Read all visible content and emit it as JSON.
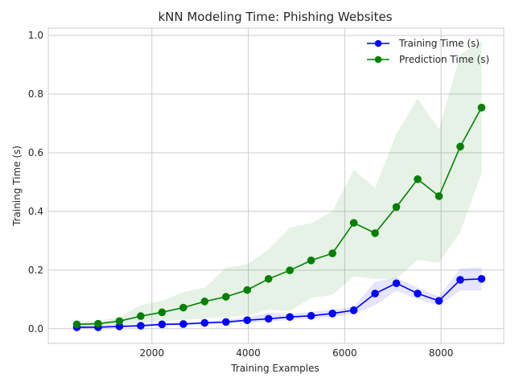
{
  "chart_data": {
    "type": "line",
    "title": "kNN Modeling Time: Phishing Websites",
    "xlabel": "Training Examples",
    "ylabel": "Training Time (s)",
    "xlim": [
      -150,
      9300
    ],
    "ylim": [
      -0.05,
      1.025
    ],
    "xticks": [
      2000,
      4000,
      6000,
      8000
    ],
    "yticks": [
      0.0,
      0.2,
      0.4,
      0.6,
      0.8,
      1.0
    ],
    "xtick_labels": [
      "2000",
      "4000",
      "6000",
      "8000"
    ],
    "ytick_labels": [
      "0.0",
      "0.2",
      "0.4",
      "0.6",
      "0.8",
      "1.0"
    ],
    "grid": true,
    "legend_position": "top-right",
    "x": [
      442,
      884,
      1326,
      1768,
      2210,
      2652,
      3094,
      3536,
      3978,
      4420,
      4862,
      5304,
      5746,
      6188,
      6630,
      7072,
      7514,
      7956,
      8398,
      8840
    ],
    "series": [
      {
        "name": "Training Time (s)",
        "color": "#0000ff",
        "band_color": "#0000ff",
        "values": [
          0.005,
          0.005,
          0.008,
          0.01,
          0.015,
          0.016,
          0.02,
          0.023,
          0.029,
          0.034,
          0.04,
          0.044,
          0.052,
          0.063,
          0.12,
          0.155,
          0.12,
          0.095,
          0.167,
          0.17
        ],
        "lower": [
          0.0,
          0.001,
          0.004,
          0.005,
          0.01,
          0.011,
          0.015,
          0.018,
          0.019,
          0.024,
          0.03,
          0.034,
          0.04,
          0.05,
          0.08,
          0.13,
          0.1,
          0.08,
          0.13,
          0.13
        ],
        "upper": [
          0.01,
          0.01,
          0.012,
          0.016,
          0.02,
          0.022,
          0.026,
          0.03,
          0.04,
          0.055,
          0.05,
          0.058,
          0.064,
          0.075,
          0.16,
          0.175,
          0.14,
          0.11,
          0.205,
          0.21
        ]
      },
      {
        "name": "Prediction Time (s)",
        "color": "#008000",
        "band_color": "#008000",
        "values": [
          0.015,
          0.017,
          0.026,
          0.043,
          0.056,
          0.072,
          0.093,
          0.109,
          0.132,
          0.17,
          0.199,
          0.233,
          0.257,
          0.361,
          0.326,
          0.415,
          0.51,
          0.452,
          0.621,
          0.754
        ],
        "lower": [
          0.005,
          0.008,
          0.012,
          0.02,
          0.025,
          0.03,
          0.035,
          0.04,
          0.045,
          0.065,
          0.06,
          0.105,
          0.115,
          0.178,
          0.17,
          0.17,
          0.235,
          0.225,
          0.33,
          0.53
        ],
        "upper": [
          0.025,
          0.027,
          0.04,
          0.08,
          0.095,
          0.125,
          0.14,
          0.208,
          0.22,
          0.27,
          0.345,
          0.36,
          0.4,
          0.542,
          0.48,
          0.665,
          0.785,
          0.68,
          0.935,
          0.98
        ]
      }
    ]
  }
}
